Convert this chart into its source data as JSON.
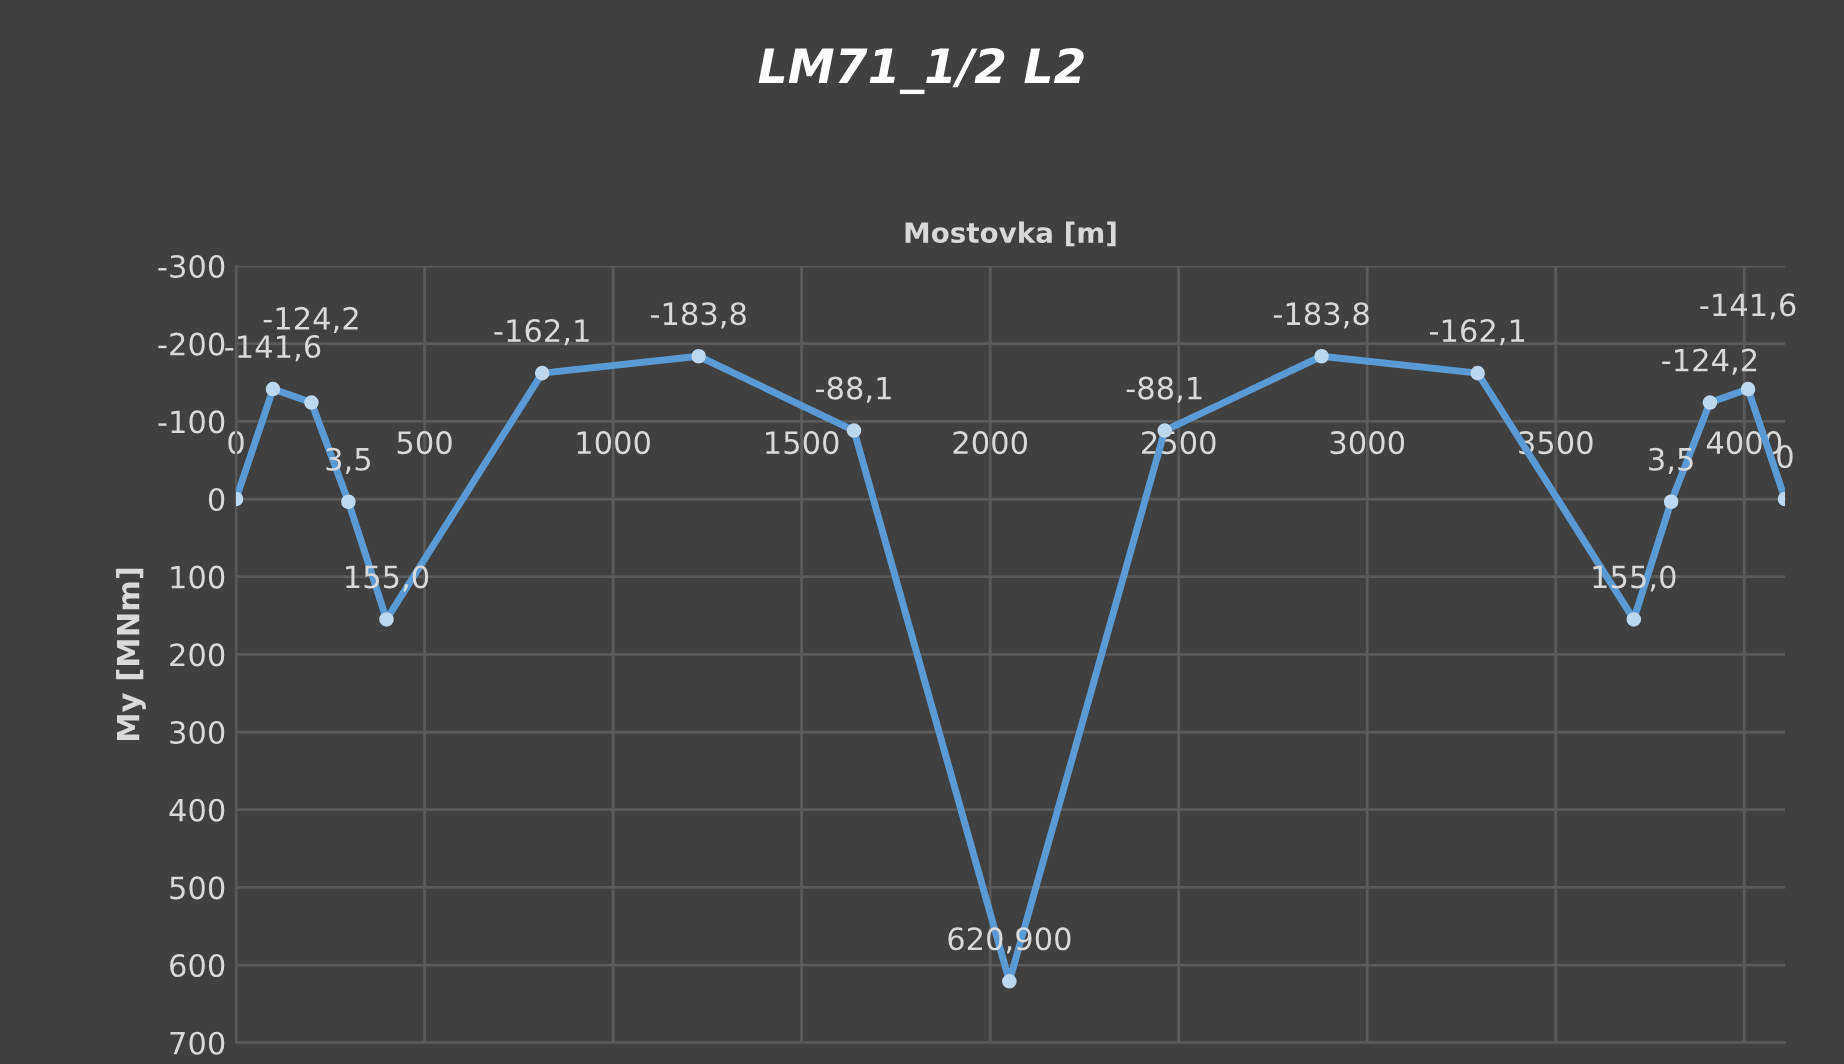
{
  "chart_data": {
    "type": "line",
    "title": "LM71_1/2 L2",
    "xlabel": "Mostovka [m]",
    "ylabel": "My [MNm]",
    "series": [
      {
        "color": "#5b9bd5",
        "x": [
          0,
          98,
          200,
          298,
          399,
          812,
          1227,
          1639,
          2051,
          2463,
          2879,
          3293,
          3707,
          3806,
          3909,
          4010,
          4108
        ],
        "values": [
          0,
          -141.6,
          -124.2,
          3.5,
          155.0,
          -162.1,
          -183.8,
          -88.1,
          620.9,
          -88.1,
          -183.8,
          -162.1,
          155.0,
          3.5,
          -124.2,
          -141.6,
          0
        ],
        "value_labels": [
          null,
          "-141,6",
          "-124,2",
          "3,5",
          "155,0",
          "-162,1",
          "-183,8",
          "-88,1",
          null,
          "-88,1",
          "-183,8",
          "-162,1",
          "155,0",
          "3,5",
          "-124,2",
          "-141,6",
          "0"
        ]
      }
    ],
    "xlim": [
      0,
      4108
    ],
    "xticks": [
      0,
      500,
      1000,
      1500,
      2000,
      2500,
      3000,
      3500,
      4000
    ],
    "ylim": [
      700,
      -300
    ],
    "yticks": [
      -300,
      -200,
      -100,
      0,
      100,
      200,
      300,
      400,
      500,
      600,
      700
    ],
    "annotations": [
      {
        "text": "620,900",
        "x": 2051,
        "y": 620.9
      }
    ],
    "grid": true,
    "marker": "circle",
    "line_style": "solid",
    "legend": false
  }
}
